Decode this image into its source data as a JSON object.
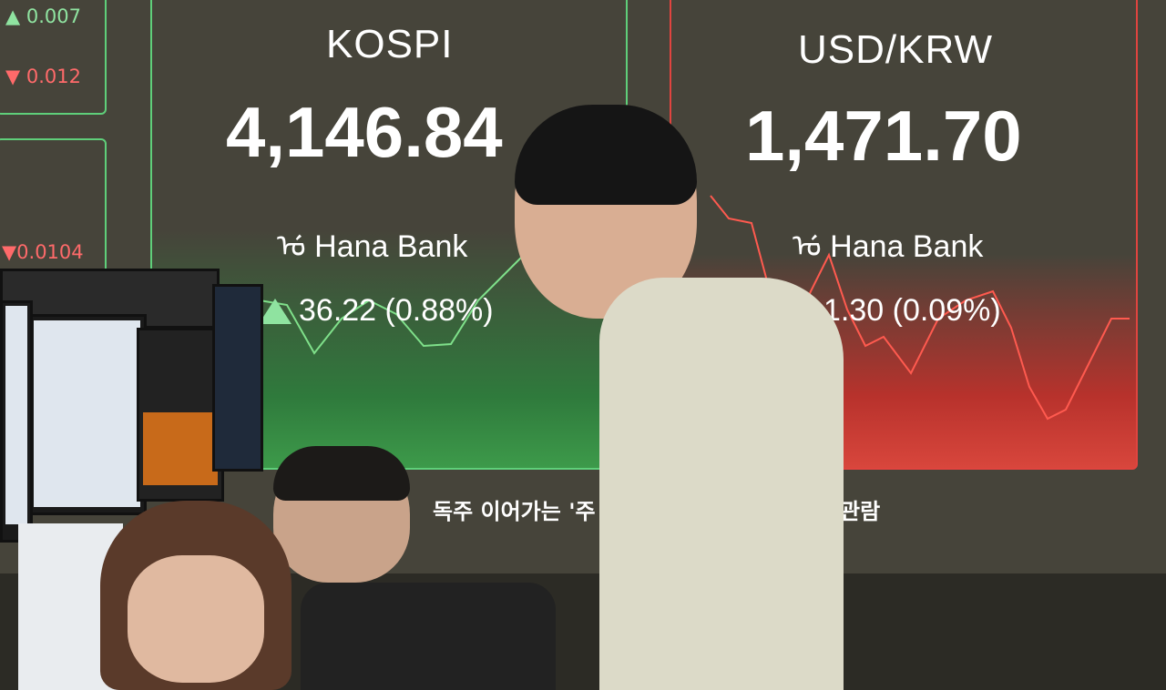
{
  "left_panel": {
    "values": [
      {
        "dir": "up",
        "value": "0.007"
      },
      {
        "dir": "down",
        "value": "0.012"
      },
      {
        "dir": "down",
        "value": "0.0104"
      }
    ]
  },
  "kospi": {
    "title": "KOSPI",
    "value": "4,146.84",
    "bank": "Hana Bank",
    "change": "36.22 (0.88%)",
    "direction": "up",
    "color": "#5fcf7a"
  },
  "usdkrw": {
    "title": "USD/KRW",
    "value": "1,471.70",
    "bank": "Hana Bank",
    "change": "1.30 (0.09%)",
    "direction": "down",
    "color": "#e0443f"
  },
  "ticker": {
    "left": "독주 이어가는 '주",
    "right": "관람"
  }
}
